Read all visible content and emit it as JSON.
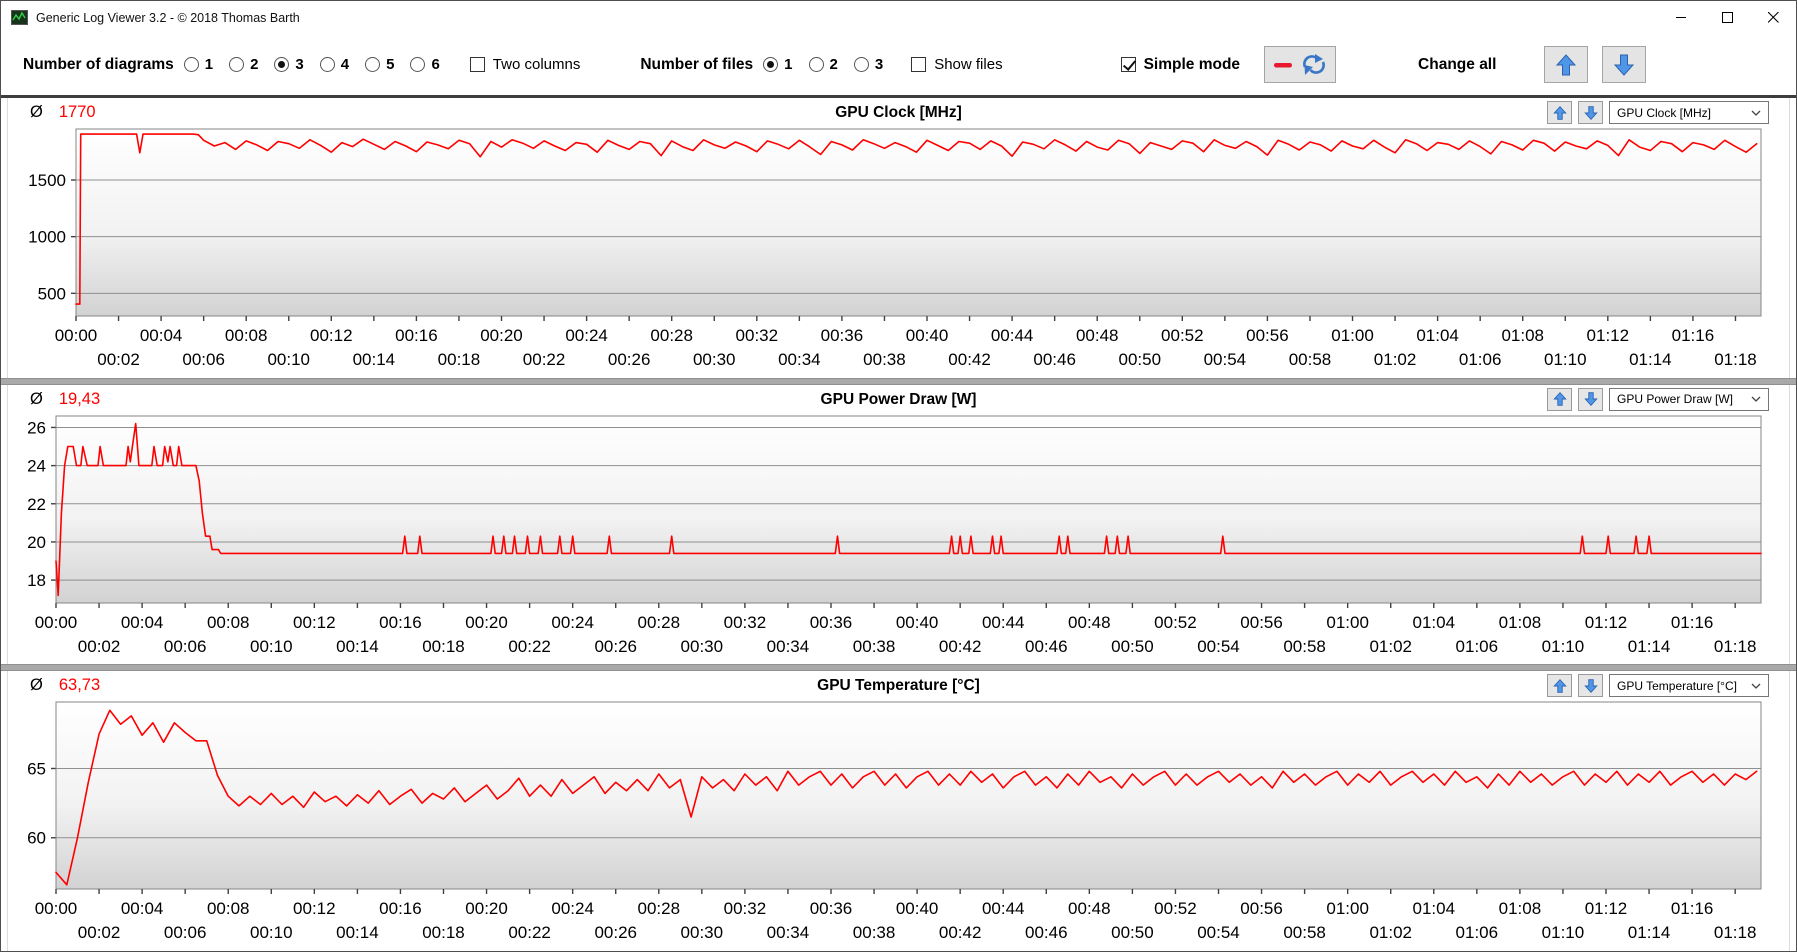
{
  "window": {
    "title": "Generic Log Viewer 3.2 - © 2018 Thomas Barth"
  },
  "icons": {
    "app": "log-viewer-app-icon",
    "minimize": "minimize-icon",
    "maximize": "maximize-icon",
    "close": "close-icon",
    "refresh_button": "red-line-refresh-icon",
    "up": "blue-up-arrow-icon",
    "down": "blue-down-arrow-icon",
    "combo_chevron": "chevron-down-icon"
  },
  "toolbar": {
    "diagrams_label": "Number of diagrams",
    "diagram_options": [
      "1",
      "2",
      "3",
      "4",
      "5",
      "6"
    ],
    "diagrams_selected": "3",
    "two_columns_label": "Two columns",
    "two_columns_checked": false,
    "files_label": "Number of files",
    "file_options": [
      "1",
      "2",
      "3"
    ],
    "files_selected": "1",
    "show_files_label": "Show files",
    "show_files_checked": false,
    "simple_mode_label": "Simple mode",
    "simple_mode_checked": true,
    "change_all_label": "Change all"
  },
  "panels": [
    {
      "average_symbol": "Ø",
      "average": "1770",
      "title": "GPU Clock [MHz]",
      "selector": "GPU Clock [MHz]"
    },
    {
      "average_symbol": "Ø",
      "average": "19,43",
      "title": "GPU Power Draw [W]",
      "selector": "GPU Power Draw [W]"
    },
    {
      "average_symbol": "Ø",
      "average": "63,73",
      "title": "GPU Temperature [°C]",
      "selector": "GPU Temperature [°C]"
    }
  ],
  "chart_data": [
    {
      "type": "line",
      "title": "GPU Clock [MHz]",
      "average": 1770,
      "line_color": "#ff0000",
      "xlim": [
        0,
        79.2
      ],
      "ylim": [
        300,
        1950
      ],
      "yticks": [
        500,
        1000,
        1500
      ],
      "xtick_step_min": 2,
      "xlabels_row1": [
        "00:00",
        "00:04",
        "00:08",
        "00:12",
        "00:16",
        "00:20",
        "00:24",
        "00:28",
        "00:32",
        "00:36",
        "00:40",
        "00:44",
        "00:48",
        "00:52",
        "00:56",
        "01:00",
        "01:04",
        "01:08",
        "01:12",
        "01:16"
      ],
      "xlabels_row2": [
        "00:02",
        "00:06",
        "00:10",
        "00:14",
        "00:18",
        "00:22",
        "00:26",
        "00:30",
        "00:34",
        "00:38",
        "00:42",
        "00:46",
        "00:50",
        "00:54",
        "00:58",
        "01:02",
        "01:06",
        "01:10",
        "01:14",
        "01:18"
      ],
      "points": [
        [
          0,
          405
        ],
        [
          0.18,
          405
        ],
        [
          0.22,
          1905
        ],
        [
          2.85,
          1905
        ],
        [
          3.0,
          1740
        ],
        [
          3.15,
          1905
        ],
        [
          5.5,
          1905
        ],
        [
          5.75,
          1900
        ]
      ],
      "sampled": {
        "t0": 6,
        "step": 0.5,
        "values": [
          1850,
          1800,
          1830,
          1770,
          1845,
          1810,
          1760,
          1840,
          1820,
          1780,
          1855,
          1805,
          1745,
          1830,
          1795,
          1860,
          1815,
          1770,
          1840,
          1800,
          1750,
          1835,
          1810,
          1775,
          1850,
          1820,
          1705,
          1840,
          1790,
          1855,
          1825,
          1780,
          1845,
          1800,
          1760,
          1830,
          1815,
          1745,
          1850,
          1805,
          1770,
          1840,
          1820,
          1715,
          1845,
          1795,
          1760,
          1855,
          1810,
          1780,
          1835,
          1800,
          1750,
          1845,
          1815,
          1775,
          1850,
          1790,
          1725,
          1840,
          1810,
          1765,
          1855,
          1820,
          1780,
          1830,
          1795,
          1745,
          1850,
          1805,
          1760,
          1840,
          1825,
          1770,
          1845,
          1800,
          1710,
          1835,
          1815,
          1775,
          1855,
          1810,
          1755,
          1840,
          1790,
          1765,
          1850,
          1820,
          1735,
          1830,
          1800,
          1770,
          1845,
          1825,
          1750,
          1855,
          1805,
          1780,
          1840,
          1795,
          1720,
          1850,
          1815,
          1765,
          1835,
          1810,
          1755,
          1845,
          1800,
          1775,
          1850,
          1790,
          1740,
          1855,
          1820,
          1760,
          1830,
          1815,
          1770,
          1845,
          1795,
          1730,
          1840,
          1810,
          1765,
          1850,
          1825,
          1755,
          1835,
          1800,
          1775,
          1845,
          1805,
          1715,
          1855,
          1790,
          1760,
          1840,
          1820,
          1750,
          1830,
          1810,
          1770,
          1850,
          1795,
          1745,
          1820
        ]
      }
    },
    {
      "type": "line",
      "title": "GPU Power Draw [W]",
      "average": 19.43,
      "line_color": "#ff0000",
      "xlim": [
        0,
        79.2
      ],
      "ylim": [
        16.8,
        26.6
      ],
      "yticks": [
        18,
        20,
        22,
        24,
        26
      ],
      "xtick_step_min": 2,
      "xlabels_row1": [
        "00:00",
        "00:04",
        "00:08",
        "00:12",
        "00:16",
        "00:20",
        "00:24",
        "00:28",
        "00:32",
        "00:36",
        "00:40",
        "00:44",
        "00:48",
        "00:52",
        "00:56",
        "01:00",
        "01:04",
        "01:08",
        "01:12",
        "01:16"
      ],
      "xlabels_row2": [
        "00:02",
        "00:06",
        "00:10",
        "00:14",
        "00:18",
        "00:22",
        "00:26",
        "00:30",
        "00:34",
        "00:38",
        "00:42",
        "00:46",
        "00:50",
        "00:54",
        "00:58",
        "01:02",
        "01:06",
        "01:10",
        "01:14",
        "01:18"
      ],
      "points": [
        [
          0,
          19.0
        ],
        [
          0.1,
          17.2
        ],
        [
          0.25,
          21.5
        ],
        [
          0.4,
          24.0
        ],
        [
          0.55,
          25.0
        ],
        [
          0.8,
          25.0
        ],
        [
          0.95,
          24.0
        ],
        [
          1.15,
          24.0
        ],
        [
          1.25,
          25.0
        ],
        [
          1.45,
          24.0
        ],
        [
          1.95,
          24.0
        ],
        [
          2.05,
          25.0
        ],
        [
          2.2,
          24.0
        ],
        [
          3.25,
          24.0
        ],
        [
          3.35,
          25.0
        ],
        [
          3.45,
          24.2
        ],
        [
          3.55,
          25.0
        ],
        [
          3.7,
          26.2
        ],
        [
          3.85,
          24.0
        ],
        [
          4.45,
          24.0
        ],
        [
          4.55,
          25.0
        ],
        [
          4.7,
          24.0
        ],
        [
          4.95,
          24.0
        ],
        [
          5.05,
          25.0
        ],
        [
          5.2,
          24.2
        ],
        [
          5.3,
          25.0
        ],
        [
          5.45,
          24.0
        ],
        [
          5.6,
          24.0
        ],
        [
          5.7,
          25.0
        ],
        [
          5.85,
          24.0
        ],
        [
          6.5,
          24.0
        ],
        [
          6.65,
          23.2
        ],
        [
          6.8,
          21.5
        ],
        [
          6.95,
          20.3
        ],
        [
          7.15,
          20.3
        ],
        [
          7.25,
          19.6
        ],
        [
          7.55,
          19.6
        ],
        [
          7.65,
          19.4
        ],
        [
          16.1,
          19.4
        ],
        [
          16.2,
          20.3
        ],
        [
          16.3,
          19.4
        ],
        [
          16.8,
          19.4
        ],
        [
          16.9,
          20.3
        ],
        [
          17.0,
          19.4
        ],
        [
          20.2,
          19.4
        ],
        [
          20.3,
          20.3
        ],
        [
          20.4,
          19.4
        ],
        [
          20.7,
          19.4
        ],
        [
          20.8,
          20.3
        ],
        [
          20.9,
          19.4
        ],
        [
          21.2,
          19.4
        ],
        [
          21.3,
          20.3
        ],
        [
          21.4,
          19.4
        ],
        [
          21.8,
          19.4
        ],
        [
          21.9,
          20.3
        ],
        [
          22.0,
          19.4
        ],
        [
          22.4,
          19.4
        ],
        [
          22.5,
          20.3
        ],
        [
          22.6,
          19.4
        ],
        [
          23.3,
          19.4
        ],
        [
          23.4,
          20.3
        ],
        [
          23.5,
          19.4
        ],
        [
          23.9,
          19.4
        ],
        [
          24.0,
          20.3
        ],
        [
          24.1,
          19.4
        ],
        [
          25.6,
          19.4
        ],
        [
          25.7,
          20.3
        ],
        [
          25.8,
          19.4
        ],
        [
          28.5,
          19.4
        ],
        [
          28.6,
          20.3
        ],
        [
          28.7,
          19.4
        ],
        [
          36.2,
          19.4
        ],
        [
          36.3,
          20.3
        ],
        [
          36.4,
          19.4
        ],
        [
          41.5,
          19.4
        ],
        [
          41.6,
          20.3
        ],
        [
          41.7,
          19.4
        ],
        [
          41.9,
          19.4
        ],
        [
          42.0,
          20.3
        ],
        [
          42.1,
          19.4
        ],
        [
          42.4,
          19.4
        ],
        [
          42.5,
          20.3
        ],
        [
          42.6,
          19.4
        ],
        [
          43.4,
          19.4
        ],
        [
          43.5,
          20.3
        ],
        [
          43.6,
          19.4
        ],
        [
          43.8,
          19.4
        ],
        [
          43.9,
          20.3
        ],
        [
          44.0,
          19.4
        ],
        [
          46.5,
          19.4
        ],
        [
          46.6,
          20.3
        ],
        [
          46.7,
          19.4
        ],
        [
          46.9,
          19.4
        ],
        [
          47.0,
          20.3
        ],
        [
          47.1,
          19.4
        ],
        [
          48.7,
          19.4
        ],
        [
          48.8,
          20.3
        ],
        [
          48.9,
          19.4
        ],
        [
          49.2,
          19.4
        ],
        [
          49.3,
          20.3
        ],
        [
          49.4,
          19.4
        ],
        [
          49.7,
          19.4
        ],
        [
          49.8,
          20.3
        ],
        [
          49.9,
          19.4
        ],
        [
          54.1,
          19.4
        ],
        [
          54.2,
          20.3
        ],
        [
          54.3,
          19.4
        ],
        [
          70.8,
          19.4
        ],
        [
          70.9,
          20.3
        ],
        [
          71.0,
          19.4
        ],
        [
          72.0,
          19.4
        ],
        [
          72.1,
          20.3
        ],
        [
          72.2,
          19.4
        ],
        [
          73.3,
          19.4
        ],
        [
          73.4,
          20.3
        ],
        [
          73.5,
          19.4
        ],
        [
          73.9,
          19.4
        ],
        [
          74.0,
          20.3
        ],
        [
          74.1,
          19.4
        ],
        [
          79.2,
          19.4
        ]
      ]
    },
    {
      "type": "line",
      "title": "GPU Temperature [°C]",
      "average": 63.73,
      "line_color": "#ff0000",
      "xlim": [
        0,
        79.2
      ],
      "ylim": [
        56.3,
        69.8
      ],
      "yticks": [
        60,
        65
      ],
      "xtick_step_min": 2,
      "xlabels_row1": [
        "00:00",
        "00:04",
        "00:08",
        "00:12",
        "00:16",
        "00:20",
        "00:24",
        "00:28",
        "00:32",
        "00:36",
        "00:40",
        "00:44",
        "00:48",
        "00:52",
        "00:56",
        "01:00",
        "01:04",
        "01:08",
        "01:12",
        "01:16"
      ],
      "xlabels_row2": [
        "00:02",
        "00:06",
        "00:10",
        "00:14",
        "00:18",
        "00:22",
        "00:26",
        "00:30",
        "00:34",
        "00:38",
        "00:42",
        "00:46",
        "00:50",
        "00:54",
        "00:58",
        "01:02",
        "01:06",
        "01:10",
        "01:14",
        "01:18"
      ],
      "sampled": {
        "t0": 0,
        "step": 0.5,
        "values": [
          57.5,
          56.6,
          60.0,
          64.0,
          67.5,
          69.2,
          68.2,
          68.8,
          67.4,
          68.3,
          66.9,
          68.3,
          67.6,
          67.0,
          67.0,
          64.5,
          63.0,
          62.3,
          63.0,
          62.4,
          63.2,
          62.4,
          63.0,
          62.2,
          63.3,
          62.6,
          63.0,
          62.3,
          63.1,
          62.5,
          63.4,
          62.4,
          63.0,
          63.5,
          62.5,
          63.2,
          62.8,
          63.6,
          62.6,
          63.2,
          63.8,
          62.8,
          63.4,
          64.3,
          63.0,
          63.8,
          63.0,
          64.2,
          63.2,
          63.8,
          64.4,
          63.2,
          64.0,
          63.4,
          64.2,
          63.4,
          64.6,
          63.6,
          64.2,
          61.5,
          64.4,
          63.6,
          64.2,
          63.4,
          64.6,
          63.8,
          64.4,
          63.4,
          64.8,
          63.8,
          64.4,
          64.8,
          63.8,
          64.6,
          63.6,
          64.4,
          64.8,
          63.8,
          64.6,
          63.6,
          64.4,
          64.8,
          63.8,
          64.6,
          63.8,
          64.8,
          64.0,
          64.6,
          63.6,
          64.4,
          64.8,
          63.8,
          64.4,
          63.6,
          64.6,
          63.8,
          64.8,
          64.0,
          64.4,
          63.6,
          64.6,
          63.8,
          64.4,
          64.8,
          63.8,
          64.6,
          63.8,
          64.4,
          64.8,
          64.0,
          64.6,
          63.8,
          64.4,
          63.6,
          64.8,
          64.0,
          64.6,
          63.8,
          64.4,
          64.8,
          63.8,
          64.6,
          64.0,
          64.8,
          63.8,
          64.4,
          64.8,
          64.0,
          64.6,
          63.8,
          64.8,
          64.0,
          64.4,
          63.6,
          64.6,
          63.8,
          64.8,
          64.0,
          64.6,
          63.8,
          64.4,
          64.8,
          63.8,
          64.6,
          64.0,
          64.8,
          63.8,
          64.6,
          64.0,
          64.8,
          63.8,
          64.4,
          64.8,
          64.0,
          64.6,
          63.8,
          64.6,
          64.2,
          64.8
        ]
      }
    }
  ]
}
